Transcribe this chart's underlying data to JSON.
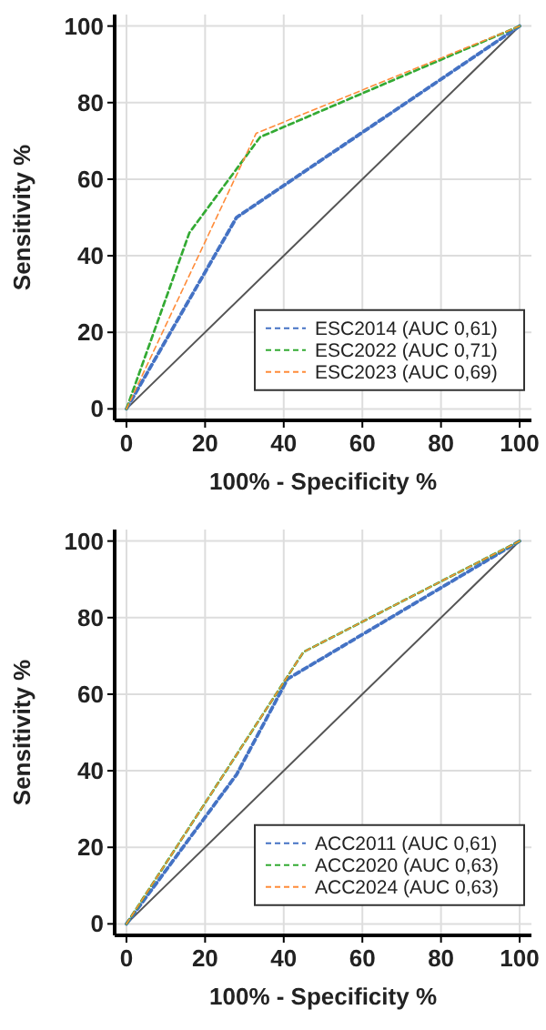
{
  "chart_data": [
    {
      "type": "line",
      "xlabel": "100% - Specificity %",
      "ylabel": "Sensitivity %",
      "xlim": [
        -3,
        103
      ],
      "ylim": [
        -3,
        103
      ],
      "xticks": [
        0,
        20,
        40,
        60,
        80,
        100
      ],
      "yticks": [
        0,
        20,
        40,
        60,
        80,
        100
      ],
      "grid": true,
      "legend": "bottom right",
      "line_style": "dashed",
      "series": [
        {
          "name": "ESC2014 (AUC 0,61)",
          "color": "#4472c4",
          "x": [
            0,
            28,
            100
          ],
          "values": [
            0,
            50,
            100
          ]
        },
        {
          "name": "ESC2022 (AUC 0,71)",
          "color": "#33aa33",
          "x": [
            0,
            16,
            34,
            100
          ],
          "values": [
            0,
            46,
            71,
            100
          ]
        },
        {
          "name": "ESC2023 (AUC 0,69)",
          "color": "#ff8c3a",
          "x": [
            0,
            33,
            100
          ],
          "values": [
            0,
            72,
            100
          ]
        },
        {
          "color": "#555555",
          "line_style": "solid",
          "x": [
            0,
            100
          ],
          "values": [
            0,
            100
          ]
        }
      ]
    },
    {
      "type": "line",
      "xlabel": "100% - Specificity %",
      "ylabel": "Sensitivity %",
      "xlim": [
        -3,
        103
      ],
      "ylim": [
        -3,
        103
      ],
      "xticks": [
        0,
        20,
        40,
        60,
        80,
        100
      ],
      "yticks": [
        0,
        20,
        40,
        60,
        80,
        100
      ],
      "grid": true,
      "legend": "bottom right",
      "line_style": "dashed",
      "series": [
        {
          "name": "ACC2011 (AUC 0,61)",
          "color": "#4472c4",
          "x": [
            0,
            28,
            41,
            100
          ],
          "values": [
            0,
            39,
            64,
            100
          ]
        },
        {
          "name": "ACC2020 (AUC 0,63)",
          "color": "#33aa33",
          "x": [
            0,
            45,
            100
          ],
          "values": [
            0,
            71,
            100
          ]
        },
        {
          "name": "ACC2024 (AUC 0,63)",
          "color": "#ff8c3a",
          "x": [
            0,
            45,
            100
          ],
          "values": [
            0,
            71,
            100
          ]
        },
        {
          "color": "#555555",
          "line_style": "solid",
          "x": [
            0,
            100
          ],
          "values": [
            0,
            100
          ]
        }
      ]
    }
  ]
}
